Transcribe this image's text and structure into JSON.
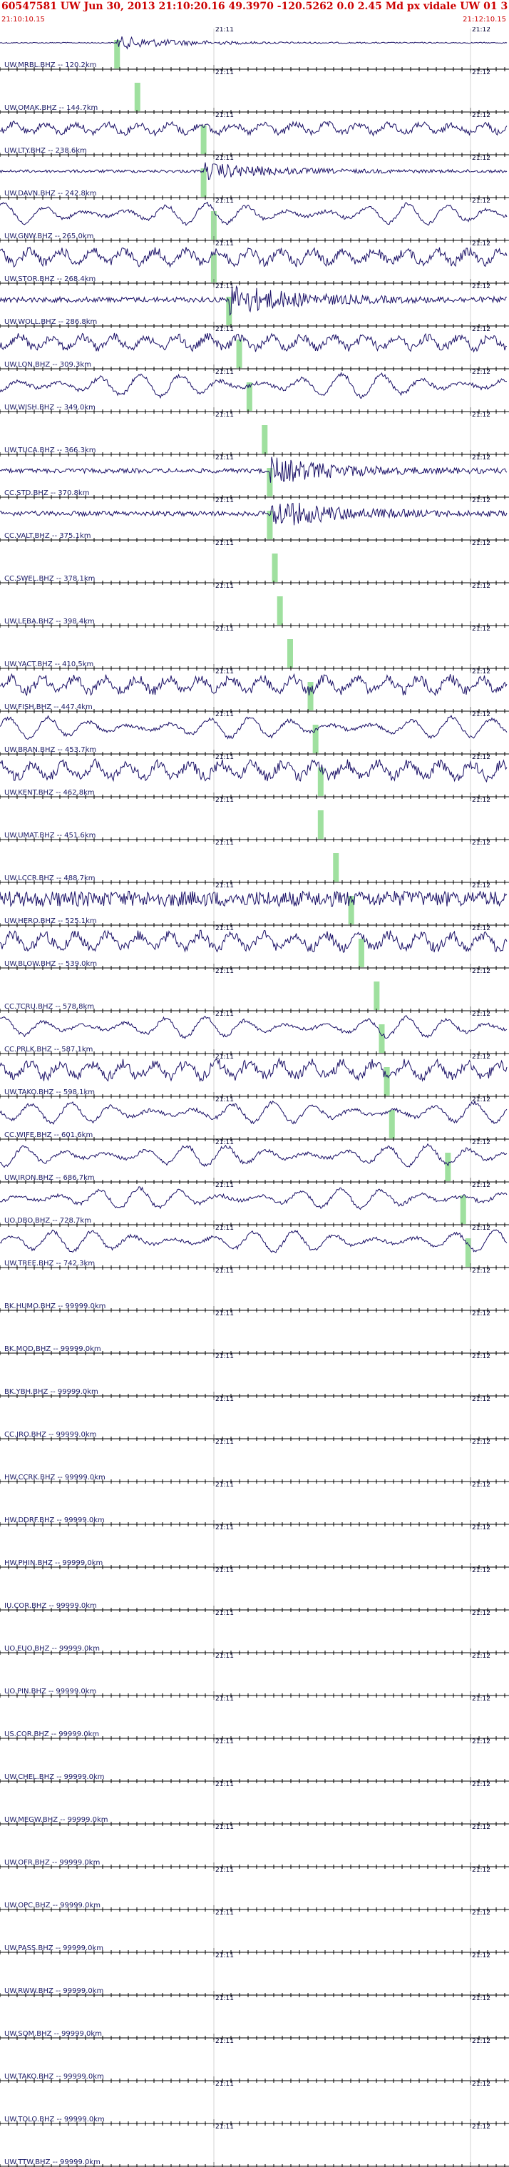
{
  "header": {
    "title": "60547581 UW Jun 30, 2013 21:10:20.16   49.3970 -120.5262  0.0 2.45 Md px vidale UW 01   3",
    "start_time": "21:10:10.15",
    "end_time": "21:12:10.15"
  },
  "colors": {
    "trace": "#1a1066",
    "pick": "#9fe09f",
    "header_text": "#cc0000",
    "axis": "#000000"
  },
  "time_labels": {
    "minute1": "21:11",
    "minute2": "21:12"
  },
  "stations": [
    {
      "label": "UW.MRBL.BHZ -- 120.2km",
      "pick": 0.23,
      "amp": 0.35,
      "style": "event"
    },
    {
      "label": "UW.OMAK.BHZ -- 144.7km",
      "pick": 0.27,
      "amp": 0,
      "style": "empty"
    },
    {
      "label": "UW.LTY.BHZ -- 238.6km",
      "pick": 0.4,
      "amp": 0.55,
      "style": "mixed"
    },
    {
      "label": "UW.DAVN.BHZ -- 242.8km",
      "pick": 0.4,
      "amp": 0.45,
      "style": "event2"
    },
    {
      "label": "UW.GNW.BHZ -- 265.0km",
      "pick": 0.42,
      "amp": 0.8,
      "style": "slow"
    },
    {
      "label": "UW.STOR.BHZ -- 268.4km",
      "pick": 0.42,
      "amp": 0.75,
      "style": "mixed"
    },
    {
      "label": "UW.WOLL.BHZ -- 286.8km",
      "pick": 0.45,
      "amp": 0.8,
      "style": "event2"
    },
    {
      "label": "UW.LON.BHZ -- 309.3km",
      "pick": 0.47,
      "amp": 0.7,
      "style": "mixed"
    },
    {
      "label": "UW.WISH.BHZ -- 349.0km",
      "pick": 0.49,
      "amp": 0.9,
      "style": "slow"
    },
    {
      "label": "UW.TUCA.BHZ -- 366.3km",
      "pick": 0.52,
      "amp": 0,
      "style": "empty"
    },
    {
      "label": "CC.STD.BHZ -- 370.8km",
      "pick": 0.53,
      "amp": 0.7,
      "style": "event2"
    },
    {
      "label": "CC.VALT.BHZ -- 375.1km",
      "pick": 0.53,
      "amp": 0.75,
      "style": "event2"
    },
    {
      "label": "CC.SWEL.BHZ -- 378.1km",
      "pick": 0.54,
      "amp": 0,
      "style": "empty"
    },
    {
      "label": "UW.LEBA.BHZ -- 398.4km",
      "pick": 0.55,
      "amp": 0,
      "style": "empty"
    },
    {
      "label": "UW.YACT.BHZ -- 410.5km",
      "pick": 0.57,
      "amp": 0,
      "style": "empty"
    },
    {
      "label": "UW.FISH.BHZ -- 447.4km",
      "pick": 0.61,
      "amp": 0.8,
      "style": "mixed"
    },
    {
      "label": "UW.BRAN.BHZ -- 453.7km",
      "pick": 0.62,
      "amp": 0.8,
      "style": "slow"
    },
    {
      "label": "UW.KENT.BHZ -- 462.8km",
      "pick": 0.63,
      "amp": 0.85,
      "style": "mixed"
    },
    {
      "label": "UW.UMAT.BHZ -- 451.6km",
      "pick": 0.63,
      "amp": 0,
      "style": "empty"
    },
    {
      "label": "UW.LCCR.BHZ -- 488.7km",
      "pick": 0.66,
      "amp": 0,
      "style": "empty"
    },
    {
      "label": "UW.HERO.BHZ -- 525.1km",
      "pick": 0.69,
      "amp": 0.75,
      "style": "noise"
    },
    {
      "label": "UW.BLOW.BHZ -- 539.0km",
      "pick": 0.71,
      "amp": 0.85,
      "style": "mixed"
    },
    {
      "label": "CC.TCRU.BHZ -- 578.8km",
      "pick": 0.74,
      "amp": 0,
      "style": "empty"
    },
    {
      "label": "CC.PRLK.BHZ -- 587.1km",
      "pick": 0.75,
      "amp": 0.8,
      "style": "slow"
    },
    {
      "label": "UW.TAKO.BHZ -- 598.1km",
      "pick": 0.76,
      "amp": 0.85,
      "style": "mixed"
    },
    {
      "label": "CC.WIFE.BHZ -- 601.6km",
      "pick": 0.77,
      "amp": 0.8,
      "style": "slow"
    },
    {
      "label": "UW.IRON.BHZ -- 686.7km",
      "pick": 0.88,
      "amp": 0.8,
      "style": "slow"
    },
    {
      "label": "UO.DBO.BHZ -- 728.7km",
      "pick": 0.91,
      "amp": 0.8,
      "style": "slow"
    },
    {
      "label": "UW.TREE.BHZ -- 742.3km",
      "pick": 0.92,
      "amp": 0.8,
      "style": "slow"
    },
    {
      "label": "BK.HUMO.BHZ -- 99999.0km",
      "pick": null,
      "amp": 0,
      "style": "empty"
    },
    {
      "label": "BK.MOD.BHZ -- 99999.0km",
      "pick": null,
      "amp": 0,
      "style": "empty"
    },
    {
      "label": "BK.YBH.BHZ -- 99999.0km",
      "pick": null,
      "amp": 0,
      "style": "empty"
    },
    {
      "label": "CC.JRO.BHZ -- 99999.0km",
      "pick": null,
      "amp": 0,
      "style": "empty"
    },
    {
      "label": "HW.CCRK.BHZ -- 99999.0km",
      "pick": null,
      "amp": 0,
      "style": "empty"
    },
    {
      "label": "HW.DDRF.BHZ -- 99999.0km",
      "pick": null,
      "amp": 0,
      "style": "empty"
    },
    {
      "label": "HW.PHIN.BHZ -- 99999.0km",
      "pick": null,
      "amp": 0,
      "style": "empty"
    },
    {
      "label": "IU.COR.BHZ -- 99999.0km",
      "pick": null,
      "amp": 0,
      "style": "empty"
    },
    {
      "label": "UO.EUO.BHZ -- 99999.0km",
      "pick": null,
      "amp": 0,
      "style": "empty"
    },
    {
      "label": "UO.PIN.BHZ -- 99999.0km",
      "pick": null,
      "amp": 0,
      "style": "empty"
    },
    {
      "label": "US.COR.BHZ -- 99999.0km",
      "pick": null,
      "amp": 0,
      "style": "empty"
    },
    {
      "label": "UW.CHEL.BHZ -- 99999.0km",
      "pick": null,
      "amp": 0,
      "style": "empty"
    },
    {
      "label": "UW.MEGW.BHZ -- 99999.0km",
      "pick": null,
      "amp": 0,
      "style": "empty"
    },
    {
      "label": "UW.OFR.BHZ -- 99999.0km",
      "pick": null,
      "amp": 0,
      "style": "empty"
    },
    {
      "label": "UW.OPC.BHZ -- 99999.0km",
      "pick": null,
      "amp": 0,
      "style": "empty"
    },
    {
      "label": "UW.PASS.BHZ -- 99999.0km",
      "pick": null,
      "amp": 0,
      "style": "empty"
    },
    {
      "label": "UW.RWW.BHZ -- 99999.0km",
      "pick": null,
      "amp": 0,
      "style": "empty"
    },
    {
      "label": "UW.SQM.BHZ -- 99999.0km",
      "pick": null,
      "amp": 0,
      "style": "empty"
    },
    {
      "label": "UW.TAKO.BHZ -- 99999.0km",
      "pick": null,
      "amp": 0,
      "style": "empty"
    },
    {
      "label": "UW.TOLO.BHZ -- 99999.0km",
      "pick": null,
      "amp": 0,
      "style": "empty"
    },
    {
      "label": "UW.TTW.BHZ -- 99999.0km",
      "pick": null,
      "amp": 0,
      "style": "empty"
    }
  ]
}
